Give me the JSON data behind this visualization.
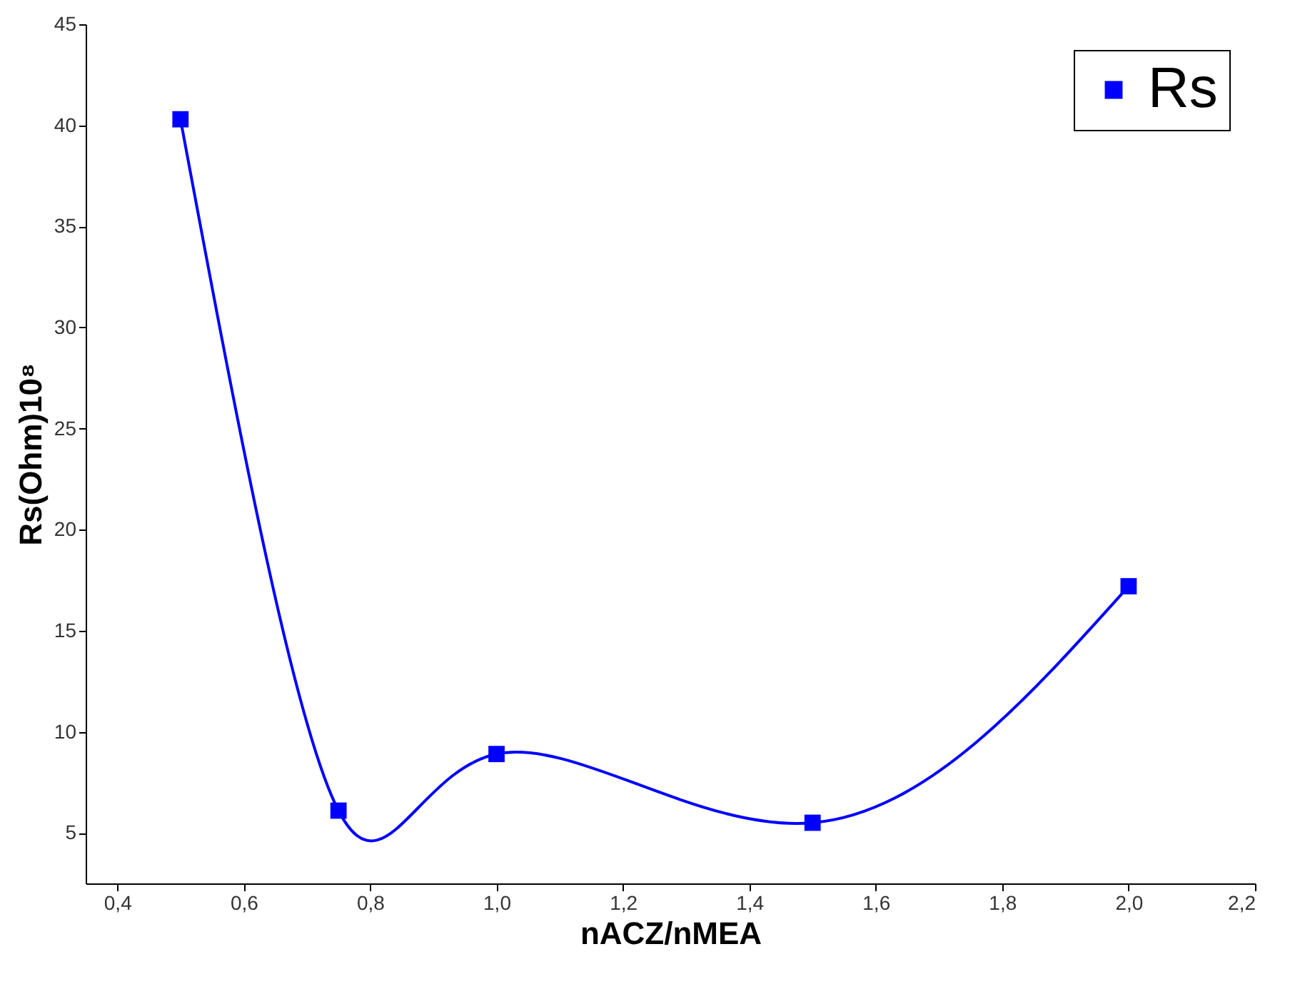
{
  "chart_data": {
    "type": "line",
    "xlabel": "nACZ/nMEA",
    "ylabel": "Rs(Ohm)10⁸",
    "x": [
      0.5,
      0.75,
      1.0,
      1.5,
      2.0
    ],
    "series": [
      {
        "name": "Rs",
        "color": "#0000ff",
        "values": [
          40.3,
          6.1,
          8.9,
          5.5,
          17.2
        ]
      }
    ],
    "xlim": [
      0.35,
      2.2
    ],
    "ylim": [
      2.5,
      45
    ],
    "xticks": [
      {
        "value": 0.4,
        "label": "0,4"
      },
      {
        "value": 0.6,
        "label": "0,6"
      },
      {
        "value": 0.8,
        "label": "0,8"
      },
      {
        "value": 1.0,
        "label": "1,0"
      },
      {
        "value": 1.2,
        "label": "1,2"
      },
      {
        "value": 1.4,
        "label": "1,4"
      },
      {
        "value": 1.6,
        "label": "1,6"
      },
      {
        "value": 1.8,
        "label": "1,8"
      },
      {
        "value": 2.0,
        "label": "2,0"
      },
      {
        "value": 2.2,
        "label": "2,2"
      }
    ],
    "yticks": [
      5,
      10,
      15,
      20,
      25,
      30,
      35,
      40,
      45
    ],
    "marker": "square",
    "line_style": "solid",
    "grid": false,
    "legend": "top right"
  }
}
